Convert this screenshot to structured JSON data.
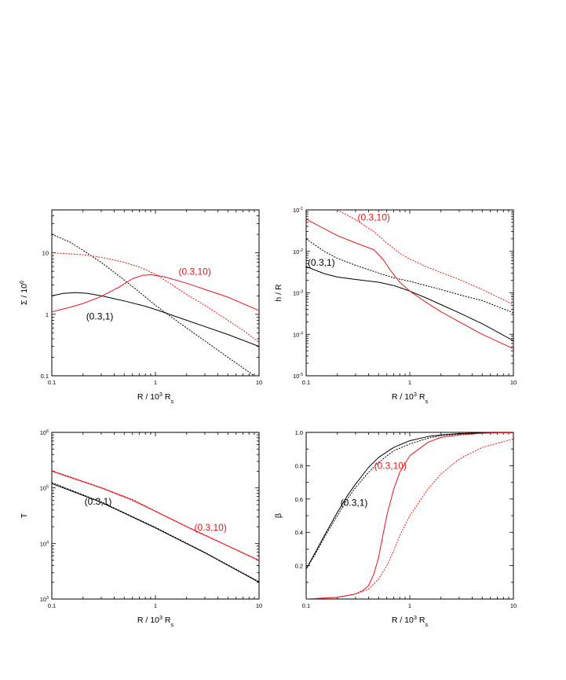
{
  "chart_data": [
    {
      "type": "line",
      "panel": "top-left",
      "xscale": "log",
      "yscale": "log",
      "xlim": [
        0.1,
        10
      ],
      "ylim": [
        0.1,
        50
      ],
      "xlabel": "R / 10^3 R_s",
      "ylabel": "Σ / 10^6",
      "xticklabels": [
        "0.1",
        "1",
        "10"
      ],
      "yticks": [
        0.1,
        1,
        10
      ],
      "yticklabels": [
        "0.1",
        "1",
        "10"
      ],
      "annotations": [
        {
          "text": "(0.3,1)",
          "color": "#000000",
          "x": 0.29,
          "y": 0.82
        },
        {
          "text": "(0.3,10)",
          "color": "#e8141a",
          "x": 2.4,
          "y": 4.4
        }
      ],
      "series": [
        {
          "color": "#000000",
          "style": "solid",
          "x": [
            0.1,
            0.13,
            0.17,
            0.22,
            0.3,
            0.5,
            0.8,
            1,
            2,
            5,
            10
          ],
          "y": [
            2.0,
            2.2,
            2.25,
            2.2,
            2.0,
            1.65,
            1.35,
            1.2,
            0.8,
            0.47,
            0.3
          ]
        },
        {
          "color": "#000000",
          "style": "dotted",
          "x": [
            0.1,
            0.15,
            0.2,
            0.3,
            0.5,
            0.7,
            1,
            1.5,
            2,
            3,
            5,
            9
          ],
          "y": [
            20,
            15,
            11,
            7,
            3.6,
            2.3,
            1.4,
            0.85,
            0.6,
            0.37,
            0.2,
            0.1
          ]
        },
        {
          "color": "#e8141a",
          "style": "solid",
          "x": [
            0.1,
            0.15,
            0.2,
            0.3,
            0.45,
            0.6,
            0.75,
            0.9,
            1.2,
            2,
            5,
            10
          ],
          "y": [
            1.1,
            1.3,
            1.5,
            1.95,
            2.8,
            3.8,
            4.3,
            4.4,
            4.1,
            3.2,
            1.9,
            1.15
          ]
        },
        {
          "color": "#e8141a",
          "style": "dotted",
          "x": [
            0.1,
            0.15,
            0.2,
            0.3,
            0.5,
            0.7,
            1,
            1.5,
            2,
            3,
            5,
            7,
            10
          ],
          "y": [
            10,
            9.6,
            9.3,
            8.5,
            7.0,
            5.9,
            4.5,
            2.9,
            2.1,
            1.4,
            0.8,
            0.55,
            0.35
          ]
        }
      ]
    },
    {
      "type": "line",
      "panel": "top-right",
      "xscale": "log",
      "yscale": "log",
      "xlim": [
        0.1,
        10
      ],
      "ylim": [
        1e-05,
        0.1
      ],
      "xlabel": "R / 10^3 R_s",
      "ylabel": "h / R",
      "xticklabels": [
        "0.1",
        "1",
        "10"
      ],
      "yticks": [
        1e-05,
        0.0001,
        0.001,
        0.01,
        0.1
      ],
      "yticklabels": [
        "10^-5",
        "10^-4",
        "10^-3",
        "10^-2",
        "10^-1"
      ],
      "annotations": [
        {
          "text": "(0.3,1)",
          "color": "#000000",
          "x": 0.14,
          "y": 0.0045
        },
        {
          "text": "(0.3,10)",
          "color": "#e8141a",
          "x": 0.45,
          "y": 0.055
        }
      ],
      "series": [
        {
          "color": "#000000",
          "style": "solid",
          "x": [
            0.1,
            0.15,
            0.2,
            0.3,
            0.5,
            0.7,
            1,
            1.5,
            2,
            3,
            5,
            10
          ],
          "y": [
            0.0043,
            0.0029,
            0.0024,
            0.0021,
            0.0018,
            0.0015,
            0.0011,
            0.00072,
            0.00052,
            0.00033,
            0.00018,
            7e-05
          ]
        },
        {
          "color": "#000000",
          "style": "dotted",
          "x": [
            0.1,
            0.15,
            0.2,
            0.3,
            0.5,
            0.7,
            1,
            2,
            3,
            5,
            10
          ],
          "y": [
            0.02,
            0.01,
            0.0068,
            0.0046,
            0.003,
            0.0023,
            0.0019,
            0.0012,
            0.0009,
            0.00065,
            0.00033
          ]
        },
        {
          "color": "#e8141a",
          "style": "solid",
          "x": [
            0.1,
            0.15,
            0.2,
            0.3,
            0.45,
            0.55,
            0.65,
            0.8,
            1,
            1.5,
            2,
            3,
            5,
            10
          ],
          "y": [
            0.06,
            0.035,
            0.024,
            0.016,
            0.011,
            0.0065,
            0.0035,
            0.0018,
            0.0011,
            0.00055,
            0.00035,
            0.0002,
            0.0001,
            4.5e-05
          ]
        },
        {
          "color": "#e8141a",
          "style": "dotted",
          "x": [
            0.2,
            0.3,
            0.45,
            0.6,
            0.8,
            1,
            1.5,
            2,
            3,
            5,
            10
          ],
          "y": [
            0.1,
            0.058,
            0.03,
            0.016,
            0.009,
            0.0065,
            0.0041,
            0.0031,
            0.0021,
            0.0012,
            0.00052
          ]
        }
      ]
    },
    {
      "type": "line",
      "panel": "bottom-left",
      "xscale": "log",
      "yscale": "log",
      "xlim": [
        0.1,
        10
      ],
      "ylim": [
        1000,
        1000000
      ],
      "xlabel": "R / 10^3 R_s",
      "ylabel": "T",
      "xticklabels": [
        "0.1",
        "1",
        "10"
      ],
      "yticks": [
        1000,
        10000,
        100000,
        1000000
      ],
      "yticklabels": [
        "10^3",
        "10^4",
        "10^5",
        "10^6"
      ],
      "annotations": [
        {
          "text": "(0.3,1)",
          "color": "#000000",
          "x": 0.28,
          "y": 50000
        },
        {
          "text": "(0.3,10)",
          "color": "#e8141a",
          "x": 3.4,
          "y": 17000
        }
      ],
      "series": [
        {
          "color": "#000000",
          "style": "solid",
          "x": [
            0.1,
            0.3,
            1,
            3,
            10
          ],
          "y": [
            120000,
            55000,
            19000,
            6800,
            2000
          ]
        },
        {
          "color": "#000000",
          "style": "dotted",
          "x": [
            0.1,
            0.3,
            1,
            3,
            10
          ],
          "y": [
            125000,
            56000,
            19500,
            6900,
            2050
          ]
        },
        {
          "color": "#e8141a",
          "style": "solid",
          "x": [
            0.1,
            0.3,
            0.6,
            1,
            2,
            5,
            10
          ],
          "y": [
            200000,
            100000,
            60000,
            38000,
            20000,
            9000,
            4900
          ]
        },
        {
          "color": "#e8141a",
          "style": "dotted",
          "x": [
            0.1,
            0.3,
            0.6,
            1,
            2,
            5,
            10
          ],
          "y": [
            205000,
            102000,
            62000,
            38500,
            20300,
            9100,
            5000
          ]
        }
      ]
    },
    {
      "type": "line",
      "panel": "bottom-right",
      "xscale": "log",
      "yscale": "linear",
      "xlim": [
        0.1,
        10
      ],
      "ylim": [
        0.0,
        1.0
      ],
      "xlabel": "R / 10^3 R_s",
      "ylabel": "β",
      "xticklabels": [
        "0.1",
        "1",
        "10"
      ],
      "yticks": [
        0.2,
        0.4,
        0.6,
        0.8,
        1.0
      ],
      "yticklabels": [
        "0.2",
        "0.4",
        "0.6",
        "0.8",
        "1.0"
      ],
      "annotations": [
        {
          "text": "(0.3,1)",
          "color": "#000000",
          "x": 0.29,
          "y": 0.56
        },
        {
          "text": "(0.3,10)",
          "color": "#e8141a",
          "x": 0.65,
          "y": 0.78
        }
      ],
      "series": [
        {
          "color": "#000000",
          "style": "solid",
          "x": [
            0.1,
            0.12,
            0.15,
            0.2,
            0.25,
            0.3,
            0.4,
            0.5,
            0.7,
            1,
            1.5,
            2,
            3,
            5,
            10
          ],
          "y": [
            0.18,
            0.27,
            0.38,
            0.52,
            0.62,
            0.69,
            0.79,
            0.85,
            0.91,
            0.95,
            0.975,
            0.985,
            0.993,
            0.997,
            0.999
          ]
        },
        {
          "color": "#000000",
          "style": "dotted",
          "x": [
            0.1,
            0.12,
            0.15,
            0.2,
            0.25,
            0.3,
            0.4,
            0.5,
            0.7,
            1,
            1.5,
            2,
            3,
            5,
            10
          ],
          "y": [
            0.18,
            0.26,
            0.37,
            0.5,
            0.6,
            0.67,
            0.76,
            0.82,
            0.89,
            0.93,
            0.965,
            0.98,
            0.99,
            0.996,
            0.999
          ]
        },
        {
          "color": "#e8141a",
          "style": "solid",
          "x": [
            0.1,
            0.2,
            0.3,
            0.35,
            0.4,
            0.45,
            0.5,
            0.55,
            0.6,
            0.7,
            0.8,
            1,
            1.5,
            2,
            3,
            5,
            10
          ],
          "y": [
            0.0,
            0.01,
            0.03,
            0.05,
            0.08,
            0.15,
            0.25,
            0.38,
            0.5,
            0.66,
            0.76,
            0.86,
            0.94,
            0.97,
            0.985,
            0.995,
            0.999
          ]
        },
        {
          "color": "#e8141a",
          "style": "dotted",
          "x": [
            0.1,
            0.2,
            0.3,
            0.4,
            0.5,
            0.6,
            0.7,
            0.8,
            1,
            1.5,
            2,
            3,
            5,
            10
          ],
          "y": [
            0.0,
            0.01,
            0.03,
            0.06,
            0.12,
            0.2,
            0.29,
            0.38,
            0.5,
            0.66,
            0.75,
            0.84,
            0.91,
            0.96
          ]
        }
      ]
    }
  ]
}
